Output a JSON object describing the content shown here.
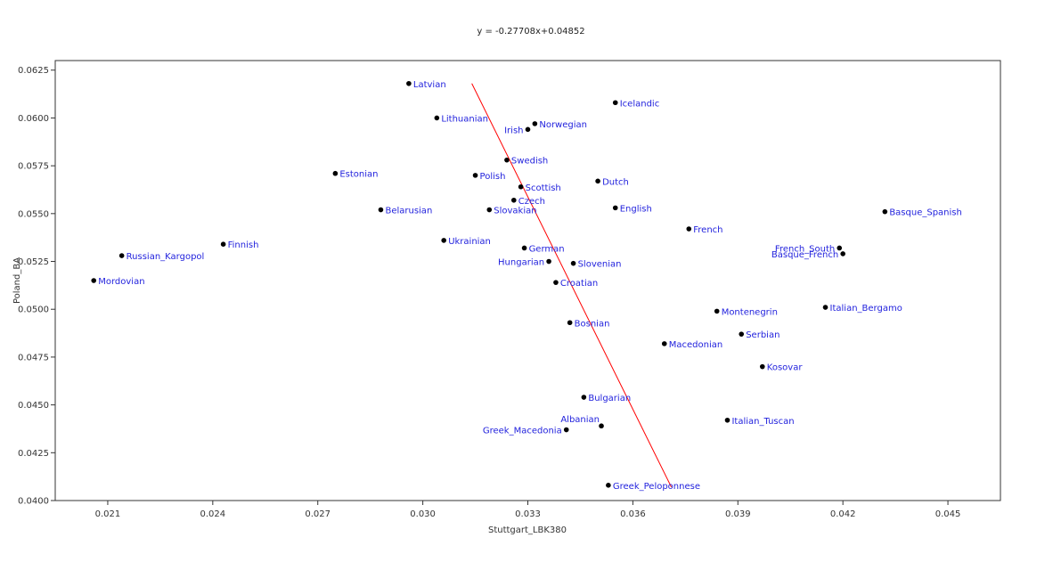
{
  "chart_data": {
    "type": "scatter",
    "title": "y = -0.27708x+0.04852",
    "xlabel": "Stuttgart_LBK380",
    "ylabel": "Poland_BA",
    "xlim": [
      0.0195,
      0.0465
    ],
    "ylim": [
      0.04,
      0.063
    ],
    "xticks": [
      "0.021",
      "0.024",
      "0.027",
      "0.030",
      "0.033",
      "0.036",
      "0.039",
      "0.042",
      "0.045"
    ],
    "yticks": [
      "0.0400",
      "0.0425",
      "0.0450",
      "0.0475",
      "0.0500",
      "0.0525",
      "0.0550",
      "0.0575",
      "0.0600",
      "0.0625"
    ],
    "grid": false,
    "point_color": "#000000",
    "label_color": "#2222dd",
    "trendline": {
      "color": "#ff0000",
      "x0": 0.0314,
      "y0": 0.0618,
      "x1": 0.0371,
      "y1": 0.0407
    },
    "points": [
      {
        "label": "Latvian",
        "x": 0.0296,
        "y": 0.0618,
        "anchor": "right"
      },
      {
        "label": "Lithuanian",
        "x": 0.0304,
        "y": 0.06,
        "anchor": "right"
      },
      {
        "label": "Icelandic",
        "x": 0.0355,
        "y": 0.0608,
        "anchor": "right"
      },
      {
        "label": "Irish",
        "x": 0.033,
        "y": 0.0594,
        "anchor": "left"
      },
      {
        "label": "Norwegian",
        "x": 0.0332,
        "y": 0.0597,
        "anchor": "right"
      },
      {
        "label": "Swedish",
        "x": 0.0324,
        "y": 0.0578,
        "anchor": "right"
      },
      {
        "label": "Estonian",
        "x": 0.0275,
        "y": 0.0571,
        "anchor": "right"
      },
      {
        "label": "Polish",
        "x": 0.0315,
        "y": 0.057,
        "anchor": "right"
      },
      {
        "label": "Scottish",
        "x": 0.0328,
        "y": 0.0564,
        "anchor": "right"
      },
      {
        "label": "Dutch",
        "x": 0.035,
        "y": 0.0567,
        "anchor": "right"
      },
      {
        "label": "Czech",
        "x": 0.0326,
        "y": 0.0557,
        "anchor": "right"
      },
      {
        "label": "Belarusian",
        "x": 0.0288,
        "y": 0.0552,
        "anchor": "right"
      },
      {
        "label": "Slovakian",
        "x": 0.0319,
        "y": 0.0552,
        "anchor": "right"
      },
      {
        "label": "English",
        "x": 0.0355,
        "y": 0.0553,
        "anchor": "right"
      },
      {
        "label": "Basque_Spanish",
        "x": 0.0432,
        "y": 0.0551,
        "anchor": "right"
      },
      {
        "label": "French",
        "x": 0.0376,
        "y": 0.0542,
        "anchor": "right"
      },
      {
        "label": "Ukrainian",
        "x": 0.0306,
        "y": 0.0536,
        "anchor": "right"
      },
      {
        "label": "Finnish",
        "x": 0.0243,
        "y": 0.0534,
        "anchor": "right"
      },
      {
        "label": "German",
        "x": 0.0329,
        "y": 0.0532,
        "anchor": "right"
      },
      {
        "label": "French_South",
        "x": 0.0419,
        "y": 0.0532,
        "anchor": "left"
      },
      {
        "label": "Russian_Kargopol",
        "x": 0.0214,
        "y": 0.0528,
        "anchor": "right"
      },
      {
        "label": "Basque_French",
        "x": 0.042,
        "y": 0.0529,
        "anchor": "left"
      },
      {
        "label": "Hungarian",
        "x": 0.0336,
        "y": 0.0525,
        "anchor": "left"
      },
      {
        "label": "Slovenian",
        "x": 0.0343,
        "y": 0.0524,
        "anchor": "right"
      },
      {
        "label": "Mordovian",
        "x": 0.0206,
        "y": 0.0515,
        "anchor": "right"
      },
      {
        "label": "Croatian",
        "x": 0.0338,
        "y": 0.0514,
        "anchor": "right"
      },
      {
        "label": "Montenegrin",
        "x": 0.0384,
        "y": 0.0499,
        "anchor": "right"
      },
      {
        "label": "Italian_Bergamo",
        "x": 0.0415,
        "y": 0.0501,
        "anchor": "right"
      },
      {
        "label": "Bosnian",
        "x": 0.0342,
        "y": 0.0493,
        "anchor": "right"
      },
      {
        "label": "Serbian",
        "x": 0.0391,
        "y": 0.0487,
        "anchor": "right"
      },
      {
        "label": "Macedonian",
        "x": 0.0369,
        "y": 0.0482,
        "anchor": "right"
      },
      {
        "label": "Kosovar",
        "x": 0.0397,
        "y": 0.047,
        "anchor": "right"
      },
      {
        "label": "Bulgarian",
        "x": 0.0346,
        "y": 0.0454,
        "anchor": "right"
      },
      {
        "label": "Italian_Tuscan",
        "x": 0.0387,
        "y": 0.0442,
        "anchor": "right"
      },
      {
        "label": "Albanian",
        "x": 0.0351,
        "y": 0.0439,
        "anchor": "above-left"
      },
      {
        "label": "Greek_Macedonia",
        "x": 0.0341,
        "y": 0.0437,
        "anchor": "left"
      },
      {
        "label": "Greek_Peloponnese",
        "x": 0.0353,
        "y": 0.0408,
        "anchor": "right"
      }
    ]
  }
}
